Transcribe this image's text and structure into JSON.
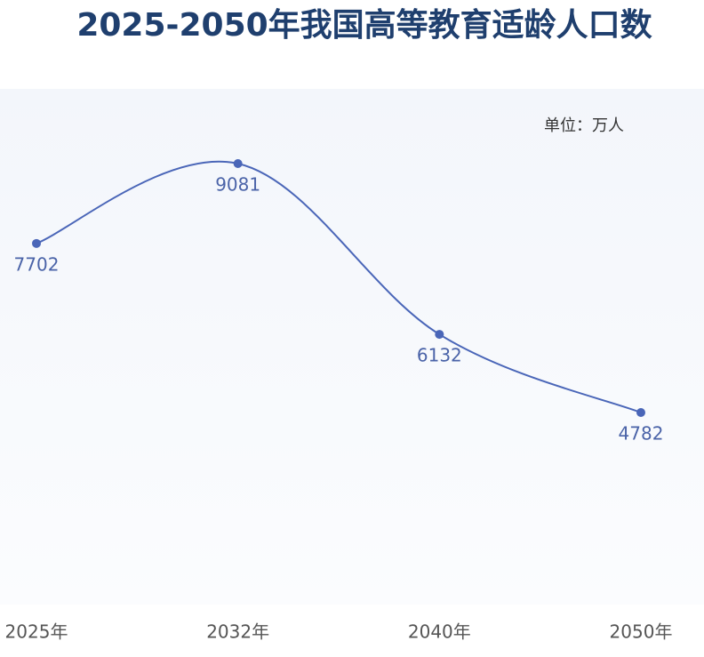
{
  "chart_data": {
    "type": "line",
    "title": "2025-2050年我国高等教育适龄人口数",
    "unit": "单位：万人",
    "categories": [
      "2025年",
      "2032年",
      "2040年",
      "2050年"
    ],
    "values": [
      7702,
      9081,
      6132,
      4782
    ],
    "color": "#4a66b8"
  }
}
